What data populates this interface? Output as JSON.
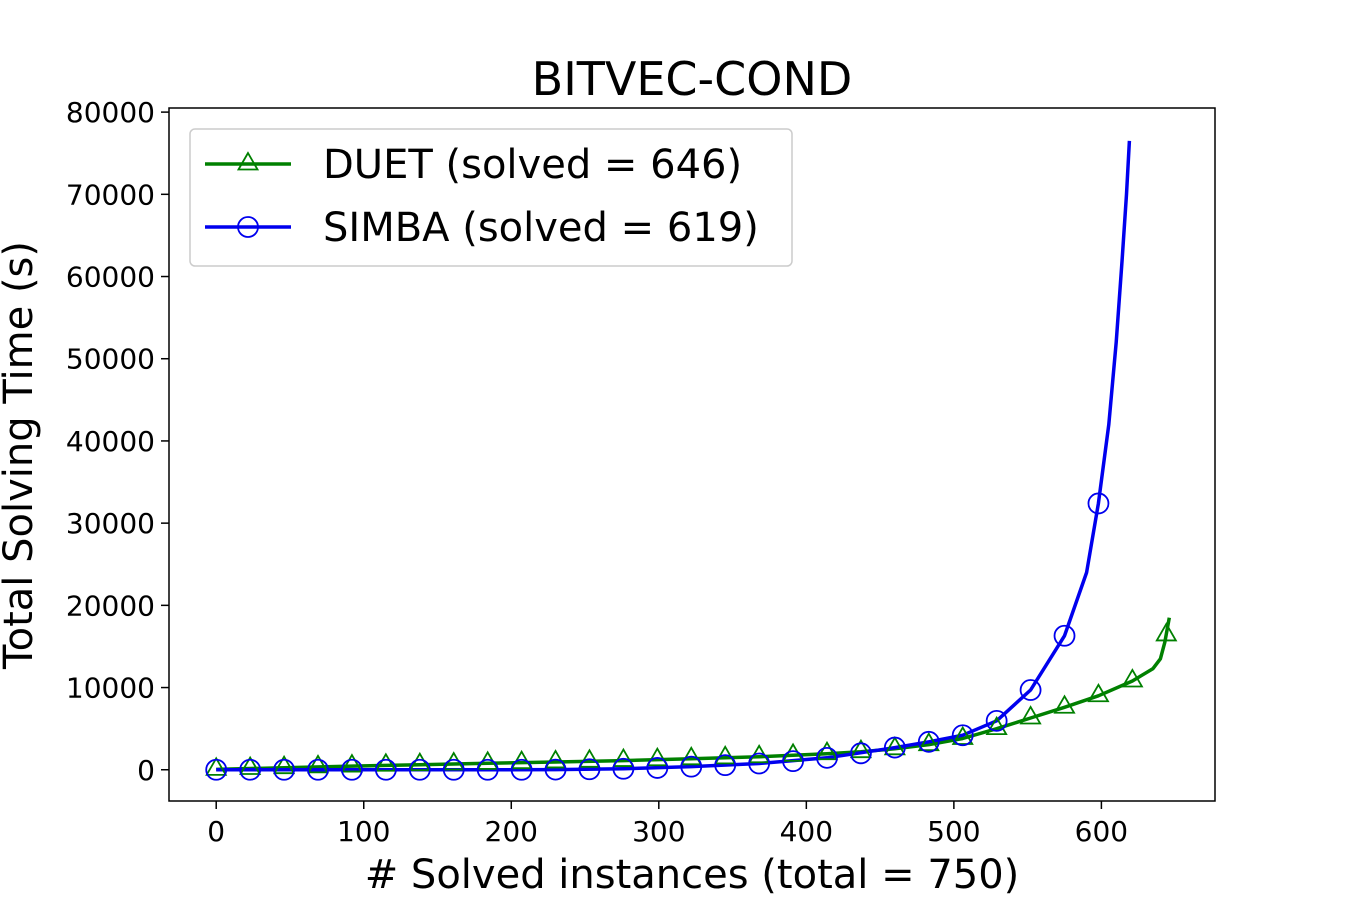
{
  "chart_data": {
    "type": "line",
    "title": "BITVEC-COND",
    "xlabel": "# Solved instances (total = 750)",
    "ylabel": "Total Solving Time (s)",
    "xlim": [
      -32,
      677
    ],
    "ylim": [
      -3800,
      80500
    ],
    "xticks": [
      0,
      100,
      200,
      300,
      400,
      500,
      600
    ],
    "yticks": [
      0,
      10000,
      20000,
      30000,
      40000,
      50000,
      60000,
      70000,
      80000
    ],
    "grid": false,
    "legend_position": "top-left",
    "series": [
      {
        "name": "DUET (solved = 646)",
        "color": "#008000",
        "marker": "triangle",
        "x": [
          0,
          23,
          46,
          69,
          92,
          115,
          138,
          161,
          184,
          207,
          230,
          253,
          276,
          299,
          322,
          345,
          368,
          391,
          414,
          437,
          460,
          483,
          506,
          529,
          552,
          575,
          598,
          621,
          644
        ],
        "y": [
          50,
          150,
          250,
          350,
          450,
          550,
          620,
          700,
          780,
          860,
          950,
          1030,
          1120,
          1220,
          1330,
          1450,
          1580,
          1750,
          1950,
          2200,
          2550,
          3050,
          3800,
          5000,
          6300,
          7600,
          9000,
          10800,
          16400
        ],
        "line_x": [
          0,
          46,
          92,
          138,
          184,
          230,
          276,
          322,
          368,
          414,
          437,
          460,
          483,
          506,
          529,
          552,
          575,
          598,
          621,
          635,
          640,
          643,
          646
        ],
        "line_y": [
          50,
          250,
          450,
          620,
          780,
          950,
          1120,
          1330,
          1580,
          1950,
          2200,
          2550,
          3050,
          3800,
          5000,
          6300,
          7600,
          9000,
          10800,
          12300,
          13500,
          15500,
          18500
        ]
      },
      {
        "name": "SIMBA (solved = 619)",
        "color": "#0000ee",
        "marker": "circle",
        "x": [
          0,
          23,
          46,
          69,
          92,
          115,
          138,
          161,
          184,
          207,
          230,
          253,
          276,
          299,
          322,
          345,
          368,
          391,
          414,
          437,
          460,
          483,
          506,
          529,
          552,
          575,
          598
        ],
        "y": [
          0,
          0,
          0,
          0,
          0,
          0,
          0,
          0,
          0,
          0,
          20,
          60,
          120,
          220,
          380,
          560,
          760,
          1050,
          1450,
          2000,
          2700,
          3400,
          4200,
          5950,
          9700,
          16300,
          32400
        ],
        "line_x": [
          0,
          46,
          92,
          138,
          184,
          230,
          276,
          322,
          368,
          414,
          460,
          483,
          506,
          529,
          552,
          575,
          590,
          598,
          605,
          610,
          614,
          617,
          619
        ],
        "line_y": [
          0,
          0,
          0,
          0,
          0,
          20,
          120,
          380,
          760,
          1450,
          2700,
          3400,
          4200,
          5950,
          9700,
          16300,
          24000,
          32400,
          42000,
          52000,
          62000,
          70000,
          76500
        ]
      }
    ]
  }
}
